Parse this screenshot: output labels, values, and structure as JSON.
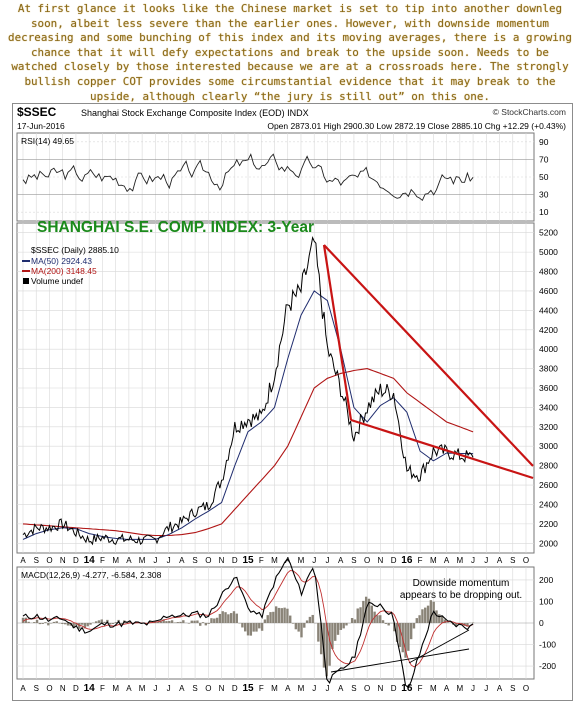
{
  "headline": "At first glance it looks like the Chinese market is set to tip into another downleg soon, albeit less severe than the earlier ones. However, with downside momentum decreasing and some bunching of this index and its moving averages, there is a growing chance that it will defy expectations and break to the upside soon. Needs to be watched closely by those interested because we are at a crossroads here. The strongly bullish copper COT provides some circumstantial evidence that it may break to the upside, although clearly “the jury is still out” on this one.",
  "header": {
    "symbol": "$SSEC",
    "name": "Shanghai Stock Exchange Composite Index (EOD) INDX",
    "source": "© StockCharts.com",
    "date": "17-Jun-2016",
    "ohlc": "Open 2873.01  High 2900.30  Low 2872.19  Close 2885.10  Chg +12.29 (+0.43%)"
  },
  "rsi_panel": {
    "label": "RSI(14) 49.65",
    "ticks": [
      "90",
      "70",
      "50",
      "30",
      "10"
    ]
  },
  "price_panel": {
    "title": "SHANGHAI S.E. COMP. INDEX: 3-Year",
    "legend": [
      {
        "text": "$SSEC (Daily) 2885.10",
        "color": "#000000"
      },
      {
        "text": "MA(50) 2924.43",
        "color": "#1f2c6e"
      },
      {
        "text": "MA(200) 3148.45",
        "color": "#b01515"
      },
      {
        "text": "Volume undef",
        "color": "#000000"
      }
    ],
    "yticks": [
      "5200",
      "5000",
      "4800",
      "4600",
      "4400",
      "4200",
      "4000",
      "3800",
      "3600",
      "3400",
      "3200",
      "3000",
      "2800",
      "2600",
      "2400",
      "2200",
      "2000"
    ]
  },
  "macd_panel": {
    "label": "MACD(12,26,9) -4.277, -6.584, 2.308",
    "note_line1": "Downside momentum",
    "note_line2": "appears to be dropping out.",
    "ticks": [
      "200",
      "100",
      "0",
      "-100",
      "-200"
    ]
  },
  "xaxis": {
    "labels": [
      "A",
      "S",
      "O",
      "N",
      "D",
      "14",
      "F",
      "M",
      "A",
      "M",
      "J",
      "J",
      "A",
      "S",
      "O",
      "N",
      "D",
      "15",
      "F",
      "M",
      "A",
      "M",
      "J",
      "J",
      "A",
      "S",
      "O",
      "N",
      "D",
      "16",
      "F",
      "M",
      "A",
      "M",
      "J",
      "J",
      "A",
      "S",
      "O"
    ]
  },
  "chart_data": {
    "type": "line",
    "title": "SHANGHAI S.E. COMP. INDEX: 3-Year",
    "ylabel": "",
    "ylim": [
      1900,
      5300
    ],
    "x": [
      "2013-08",
      "2013-09",
      "2013-10",
      "2013-11",
      "2013-12",
      "2014-01",
      "2014-02",
      "2014-03",
      "2014-04",
      "2014-05",
      "2014-06",
      "2014-07",
      "2014-08",
      "2014-09",
      "2014-10",
      "2014-11",
      "2014-12",
      "2015-01",
      "2015-02",
      "2015-03",
      "2015-04",
      "2015-05",
      "2015-06",
      "2015-07",
      "2015-08",
      "2015-09",
      "2015-10",
      "2015-11",
      "2015-12",
      "2016-01",
      "2016-02",
      "2016-03",
      "2016-04",
      "2016-05",
      "2016-06"
    ],
    "series": [
      {
        "name": "$SSEC (Daily)",
        "values": [
          2090,
          2160,
          2160,
          2200,
          2110,
          2030,
          2060,
          2040,
          2040,
          2030,
          2040,
          2160,
          2220,
          2330,
          2390,
          2650,
          3200,
          3280,
          3300,
          3750,
          4450,
          4600,
          5100,
          4000,
          3600,
          3100,
          3400,
          3580,
          3550,
          2750,
          2700,
          2950,
          2940,
          2900,
          2885
        ]
      },
      {
        "name": "MA(50)",
        "values": [
          2040,
          2100,
          2140,
          2160,
          2150,
          2100,
          2070,
          2050,
          2040,
          2040,
          2040,
          2090,
          2160,
          2250,
          2330,
          2420,
          2800,
          3150,
          3250,
          3400,
          3900,
          4350,
          4600,
          4500,
          4000,
          3400,
          3250,
          3420,
          3500,
          3350,
          2950,
          2850,
          2930,
          2925,
          2924
        ]
      },
      {
        "name": "MA(200)",
        "values": [
          2200,
          2190,
          2180,
          2170,
          2160,
          2150,
          2140,
          2130,
          2110,
          2090,
          2080,
          2080,
          2090,
          2110,
          2150,
          2200,
          2350,
          2500,
          2650,
          2800,
          3000,
          3300,
          3600,
          3700,
          3750,
          3780,
          3800,
          3750,
          3700,
          3550,
          3450,
          3350,
          3250,
          3200,
          3148
        ]
      }
    ],
    "panels": [
      {
        "name": "RSI(14)",
        "ylim": [
          0,
          100
        ],
        "last": 49.65
      },
      {
        "name": "MACD(12,26,9)",
        "ylim": [
          -260,
          260
        ],
        "values": [
          -4.277,
          -6.584,
          2.308
        ]
      }
    ],
    "annotations": [
      "Downside momentum appears to be dropping out."
    ]
  }
}
